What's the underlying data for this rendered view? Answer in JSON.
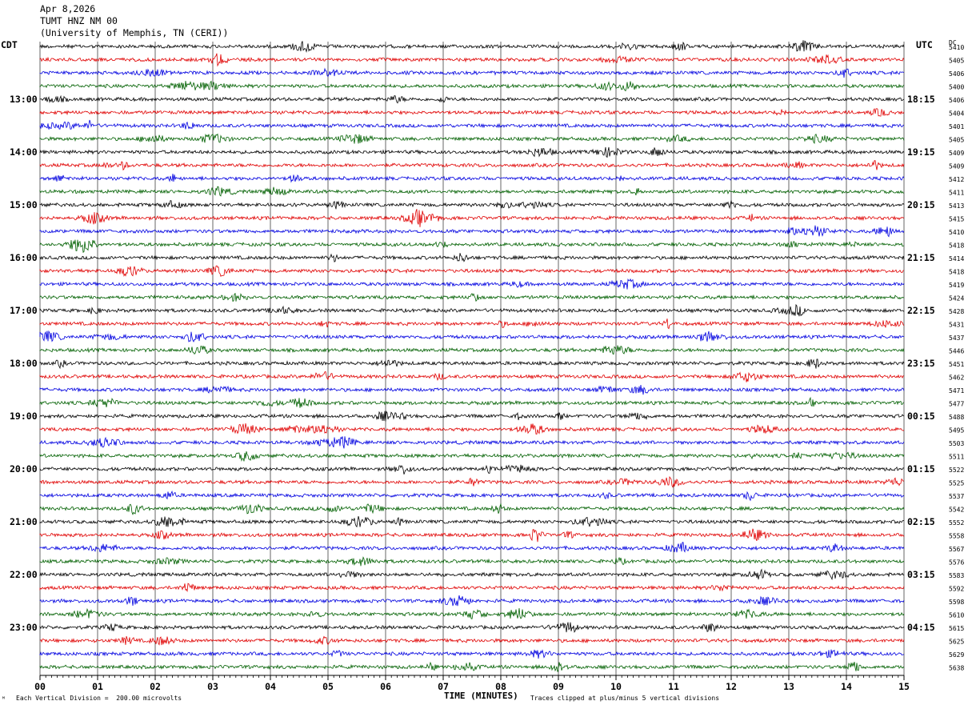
{
  "header": {
    "date": "Apr 8,2026",
    "station": "TUMT HNZ NM 00",
    "institution": "(University of Memphis, TN (CERI))"
  },
  "left_tz": "CDT",
  "right_tz": "UTC",
  "dc_header": "DC",
  "footer": {
    "scale": "Each Vertical Division =  200.00 microvolts",
    "clip": "Traces clipped at plus/minus 5 vertical divisions",
    "marker": "ᴹ"
  },
  "colors": {
    "trace_cycle": [
      "#000000",
      "#e00000",
      "#0000e0",
      "#006000"
    ],
    "grid": "#000000"
  },
  "chart_data": {
    "type": "line",
    "title": "TUMT HNZ NM 00",
    "xlabel": "TIME (MINUTES)",
    "ylabel": "",
    "xlim": [
      0,
      15
    ],
    "x_tick_labels": [
      "00",
      "01",
      "02",
      "03",
      "04",
      "05",
      "06",
      "07",
      "08",
      "09",
      "10",
      "11",
      "12",
      "13",
      "14",
      "15"
    ],
    "grid": true,
    "trace_count": 48,
    "left_hour_labels": [
      "13:00",
      "14:00",
      "15:00",
      "16:00",
      "17:00",
      "18:00",
      "19:00",
      "20:00",
      "21:00",
      "22:00",
      "23:00"
    ],
    "right_hour_labels": [
      "18:15",
      "19:15",
      "20:15",
      "21:15",
      "22:15",
      "23:15",
      "00:15",
      "01:15",
      "02:15",
      "03:15",
      "04:15"
    ],
    "hour_label_first_trace": 4,
    "hour_label_every": 4,
    "dc_values": [
      "5410",
      "5405",
      "5406",
      "5400",
      "5406",
      "5404",
      "5401",
      "5405",
      "5409",
      "5409",
      "5412",
      "5411",
      "5413",
      "5415",
      "5410",
      "5418",
      "5414",
      "5418",
      "5419",
      "5424",
      "5428",
      "5431",
      "5437",
      "5446",
      "5451",
      "5462",
      "5471",
      "5477",
      "5488",
      "5495",
      "5503",
      "5511",
      "5522",
      "5525",
      "5537",
      "5542",
      "5552",
      "5558",
      "5567",
      "5576",
      "5583",
      "5592",
      "5598",
      "5610",
      "5615",
      "5625",
      "5629",
      "5638"
    ]
  }
}
